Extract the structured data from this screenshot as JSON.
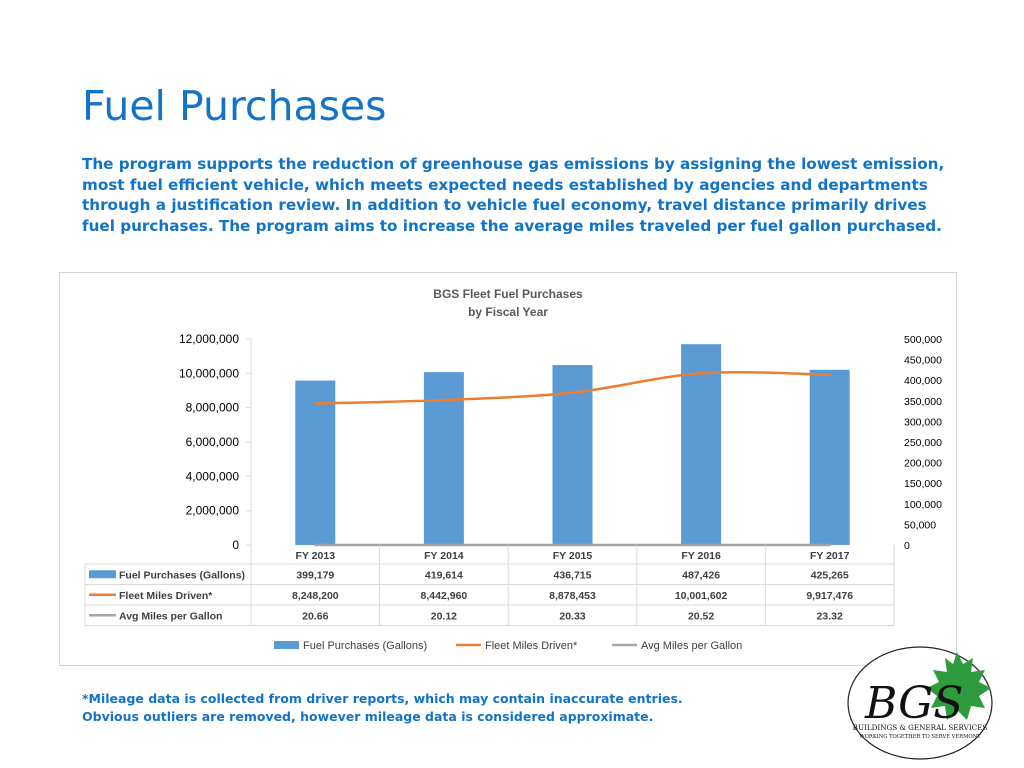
{
  "page": {
    "title": "Fuel Purchases",
    "intro": "The program supports the reduction of greenhouse gas emissions by assigning the lowest emission, most fuel efficient vehicle, which meets expected needs established by agencies and departments through a justification review.  In addition to vehicle fuel economy, travel distance primarily drives fuel purchases. The program aims to increase the average miles traveled per fuel gallon purchased.",
    "footnote_line1": "*Mileage data is collected from driver reports, which may contain inaccurate entries.",
    "footnote_line2": "Obvious outliers are removed, however mileage data is considered approximate."
  },
  "logo": {
    "initials": "BGS",
    "line1": "BUILDINGS & GENERAL SERVICES",
    "line2": "WORKING TOGETHER TO SERVE VERMONT",
    "leaf_color": "#2e9b3e"
  },
  "chart_data": {
    "type": "bar",
    "title_line1": "BGS Fleet Fuel Purchases",
    "title_line2": "by Fiscal Year",
    "categories": [
      "FY 2013",
      "FY 2014",
      "FY 2015",
      "FY 2016",
      "FY 2017"
    ],
    "series": [
      {
        "name": "Fuel Purchases (Gallons)",
        "type": "bar",
        "axis": "right",
        "color": "#5b9bd5",
        "values": [
          399179,
          419614,
          436715,
          487426,
          425265
        ],
        "labels": [
          "399,179",
          "419,614",
          "436,715",
          "487,426",
          "425,265"
        ]
      },
      {
        "name": "Fleet Miles Driven*",
        "type": "line",
        "axis": "left",
        "color": "#ed7d31",
        "values": [
          8248200,
          8442960,
          8878453,
          10001602,
          9917476
        ],
        "labels": [
          "8,248,200",
          "8,442,960",
          "8,878,453",
          "10,001,602",
          "9,917,476"
        ]
      },
      {
        "name": "Avg Miles per Gallon",
        "type": "line",
        "axis": "left",
        "color": "#a5a5a5",
        "values": [
          20.66,
          20.12,
          20.33,
          20.52,
          23.32
        ],
        "labels": [
          "20.66",
          "20.12",
          "20.33",
          "20.52",
          "23.32"
        ]
      }
    ],
    "left_axis": {
      "ylim": [
        0,
        12000000
      ],
      "ticks": [
        0,
        2000000,
        4000000,
        6000000,
        8000000,
        10000000,
        12000000
      ],
      "tick_labels": [
        "0",
        "2,000,000",
        "4,000,000",
        "6,000,000",
        "8,000,000",
        "10,000,000",
        "12,000,000"
      ]
    },
    "right_axis": {
      "ylim": [
        0,
        500000
      ],
      "ticks": [
        0,
        50000,
        100000,
        150000,
        200000,
        250000,
        300000,
        350000,
        400000,
        450000,
        500000
      ],
      "tick_labels": [
        "0",
        "50,000",
        "100,000",
        "150,000",
        "200,000",
        "250,000",
        "300,000",
        "350,000",
        "400,000",
        "450,000",
        "500,000"
      ]
    },
    "grid": false,
    "data_table": true,
    "legend": "bottom"
  }
}
